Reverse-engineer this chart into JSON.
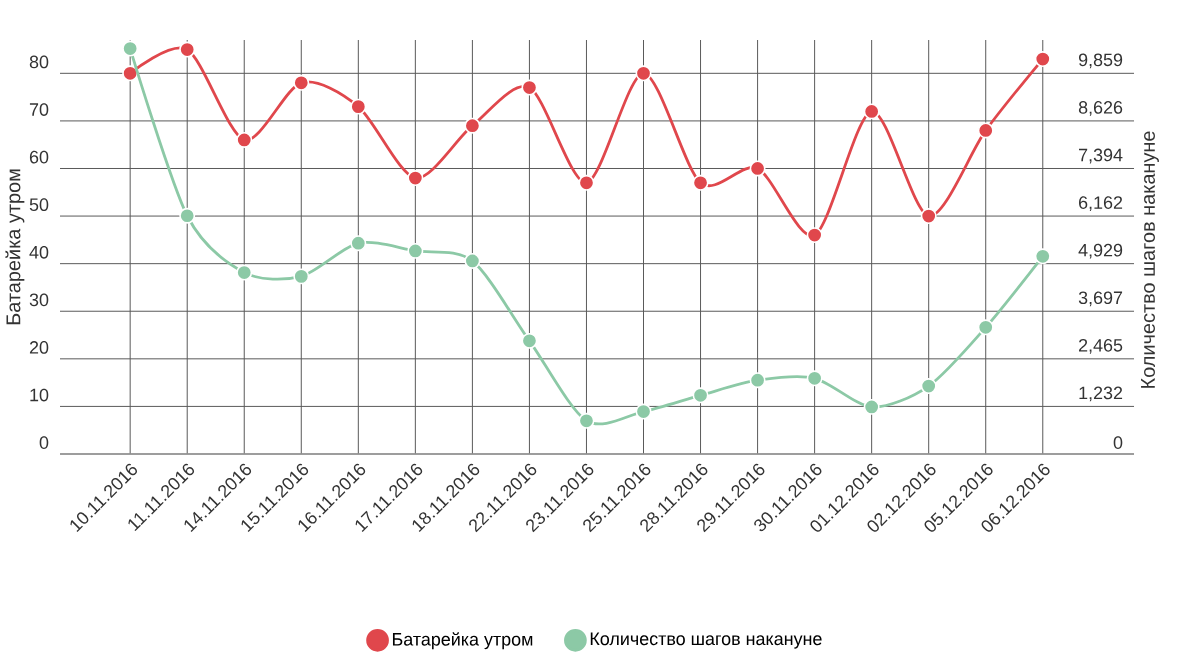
{
  "chart_data": {
    "type": "line",
    "xlabel": null,
    "ylabel": "Батарейка утром",
    "y2label": "Количество шагов накануне",
    "categories": [
      "10.11.2016",
      "11.11.2016",
      "14.11.2016",
      "15.11.2016",
      "16.11.2016",
      "17.11.2016",
      "18.11.2016",
      "22.11.2016",
      "23.11.2016",
      "25.11.2016",
      "28.11.2016",
      "29.11.2016",
      "30.11.2016",
      "01.12.2016",
      "02.12.2016",
      "05.12.2016",
      "06.12.2016"
    ],
    "series": [
      {
        "name": "Батарейка утром",
        "color": "#e0474c",
        "values": [
          80,
          85,
          66,
          78,
          73,
          58,
          69,
          77,
          57,
          80,
          57,
          60,
          46,
          72,
          50,
          68,
          83
        ]
      },
      {
        "name": "Количество шагов накануне",
        "color": "#8cc9a6",
        "axis": "y2",
        "values": [
          10500,
          6170,
          4700,
          4600,
          5460,
          5260,
          5000,
          2930,
          860,
          1100,
          1520,
          1910,
          1960,
          1220,
          1760,
          3280,
          5120
        ]
      }
    ],
    "ylim": [
      0,
      87
    ],
    "yticks": [
      0,
      10,
      20,
      30,
      40,
      50,
      60,
      70,
      80
    ],
    "y2lim": [
      0,
      10721.7
    ],
    "y2ticks": [
      {
        "value": 0,
        "label": "0"
      },
      {
        "value": 1232,
        "label": "1,232"
      },
      {
        "value": 2465,
        "label": "2,465"
      },
      {
        "value": 3697,
        "label": "3,697"
      },
      {
        "value": 4929,
        "label": "4,929"
      },
      {
        "value": 6162,
        "label": "6,162"
      },
      {
        "value": 7394,
        "label": "7,394"
      },
      {
        "value": 8626,
        "label": "8,626"
      },
      {
        "value": 9859,
        "label": "9,859"
      }
    ],
    "grid": true,
    "legend": "bottom",
    "marker": "circle",
    "line_style": "solid"
  }
}
